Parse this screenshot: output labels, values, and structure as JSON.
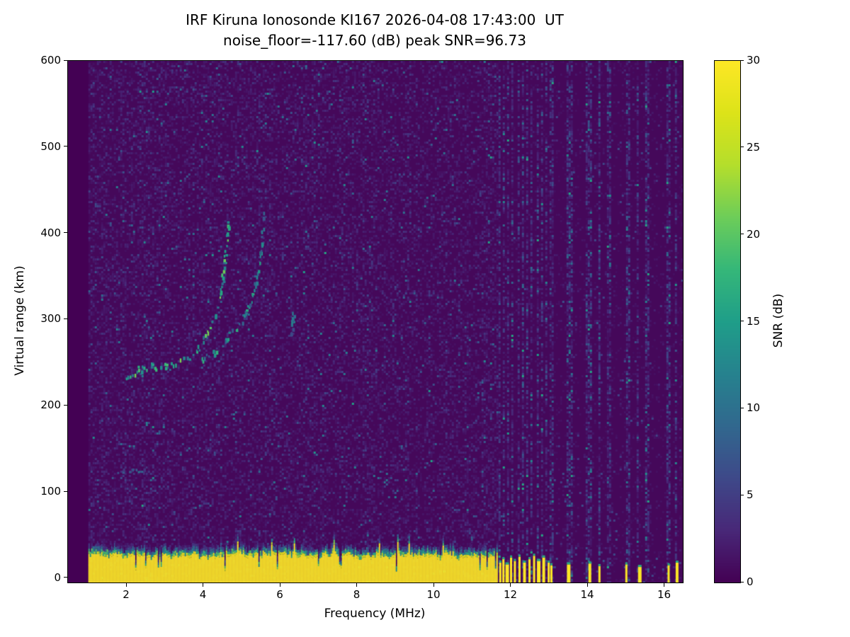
{
  "title": {
    "line1": "IRF Kiruna Ionosonde KI167 2026-04-08 17:43:00  UT",
    "line2": "noise_floor=-117.60 (dB) peak SNR=96.73"
  },
  "chart_data": {
    "type": "heatmap",
    "title": "IRF Kiruna Ionosonde KI167 2026-04-08 17:43:00  UT",
    "subtitle": "noise_floor=-117.60 (dB) peak SNR=96.73",
    "station": "KI167",
    "timestamp_ut": "2026-04-08 17:43:00",
    "noise_floor_db": -117.6,
    "peak_snr_db": 96.73,
    "xlabel": "Frequency (MHz)",
    "ylabel": "Virtual range (km)",
    "xlim": [
      0.47,
      16.47
    ],
    "ylim": [
      -5,
      600
    ],
    "xticks": [
      2,
      4,
      6,
      8,
      10,
      12,
      14,
      16
    ],
    "yticks": [
      0,
      100,
      200,
      300,
      400,
      500,
      600
    ],
    "colorbar": {
      "label": "SNR (dB)",
      "min": 0,
      "max": 30,
      "ticks": [
        0,
        5,
        10,
        15,
        20,
        25,
        30
      ]
    },
    "colormap_viridis": [
      [
        0,
        "#440154"
      ],
      [
        0.1,
        "#482878"
      ],
      [
        0.2,
        "#3E4989"
      ],
      [
        0.3,
        "#31688E"
      ],
      [
        0.4,
        "#26828E"
      ],
      [
        0.5,
        "#1F9E89"
      ],
      [
        0.6,
        "#35B779"
      ],
      [
        0.7,
        "#6DCD59"
      ],
      [
        0.8,
        "#B4DE2C"
      ],
      [
        0.9,
        "#DCE319"
      ],
      [
        1,
        "#FDE725"
      ]
    ],
    "sweep_freq_range_mhz": [
      1.0,
      16.45
    ],
    "ground_clutter": {
      "freq_range_mhz": [
        1.0,
        11.62
      ],
      "mean_top_km": 26,
      "max_top_km": 42,
      "snr_db": 30
    },
    "echo_traces": [
      {
        "name": "F-layer ordinary trace",
        "snr_db": 15,
        "spread_km": 9,
        "density": 0.65,
        "points_mhz_km": [
          [
            1.95,
            237
          ],
          [
            2.3,
            242
          ],
          [
            2.65,
            246
          ],
          [
            3.0,
            248
          ],
          [
            3.3,
            251
          ],
          [
            3.6,
            257
          ],
          [
            3.85,
            268
          ],
          [
            4.05,
            281
          ],
          [
            4.2,
            296
          ],
          [
            4.33,
            313
          ],
          [
            4.43,
            333
          ],
          [
            4.5,
            356
          ],
          [
            4.56,
            380
          ],
          [
            4.61,
            403
          ],
          [
            4.64,
            416
          ]
        ]
      },
      {
        "name": "F-layer extraordinary trace",
        "snr_db": 12,
        "spread_km": 8,
        "density": 0.55,
        "points_mhz_km": [
          [
            3.95,
            253
          ],
          [
            4.25,
            264
          ],
          [
            4.55,
            277
          ],
          [
            4.85,
            291
          ],
          [
            5.05,
            305
          ],
          [
            5.2,
            320
          ],
          [
            5.32,
            340
          ],
          [
            5.42,
            363
          ],
          [
            5.49,
            388
          ],
          [
            5.53,
            410
          ],
          [
            5.55,
            422
          ]
        ]
      },
      {
        "name": "E-layer faint trace",
        "snr_db": 7,
        "spread_km": 4,
        "density": 0.5,
        "points_mhz_km": [
          [
            1.62,
            123
          ],
          [
            1.95,
            126
          ],
          [
            2.25,
            125
          ],
          [
            2.5,
            127
          ]
        ]
      },
      {
        "name": "faint echo 6.3 MHz",
        "snr_db": 9,
        "spread_km": 4,
        "density": 0.7,
        "points_mhz_km": [
          [
            6.28,
            283
          ],
          [
            6.32,
            308
          ]
        ]
      }
    ],
    "interference_stripes_mhz": [
      11.72,
      11.82,
      11.93,
      12.05,
      12.18,
      12.3,
      12.43,
      12.55,
      12.68,
      12.8,
      12.92,
      13.05,
      13.5,
      13.57,
      14.0,
      14.08,
      14.3,
      14.55,
      15.0,
      15.08,
      15.3,
      15.55,
      16.1,
      16.3
    ],
    "interference_bars": [
      [
        11.72,
        18
      ],
      [
        11.8,
        22
      ],
      [
        11.9,
        16
      ],
      [
        12.0,
        24
      ],
      [
        12.1,
        20
      ],
      [
        12.22,
        25
      ],
      [
        12.35,
        18
      ],
      [
        12.48,
        22
      ],
      [
        12.6,
        26
      ],
      [
        12.72,
        20
      ],
      [
        12.85,
        24
      ],
      [
        12.98,
        18
      ],
      [
        13.05,
        15
      ],
      [
        13.5,
        16
      ],
      [
        14.05,
        17
      ],
      [
        14.3,
        14
      ],
      [
        15.0,
        16
      ],
      [
        15.35,
        13
      ],
      [
        16.1,
        15
      ],
      [
        16.32,
        18
      ]
    ],
    "noise": {
      "mean_db": 1.1,
      "spike_probability": 0.012,
      "visible_threshold_db": 1.0
    }
  }
}
